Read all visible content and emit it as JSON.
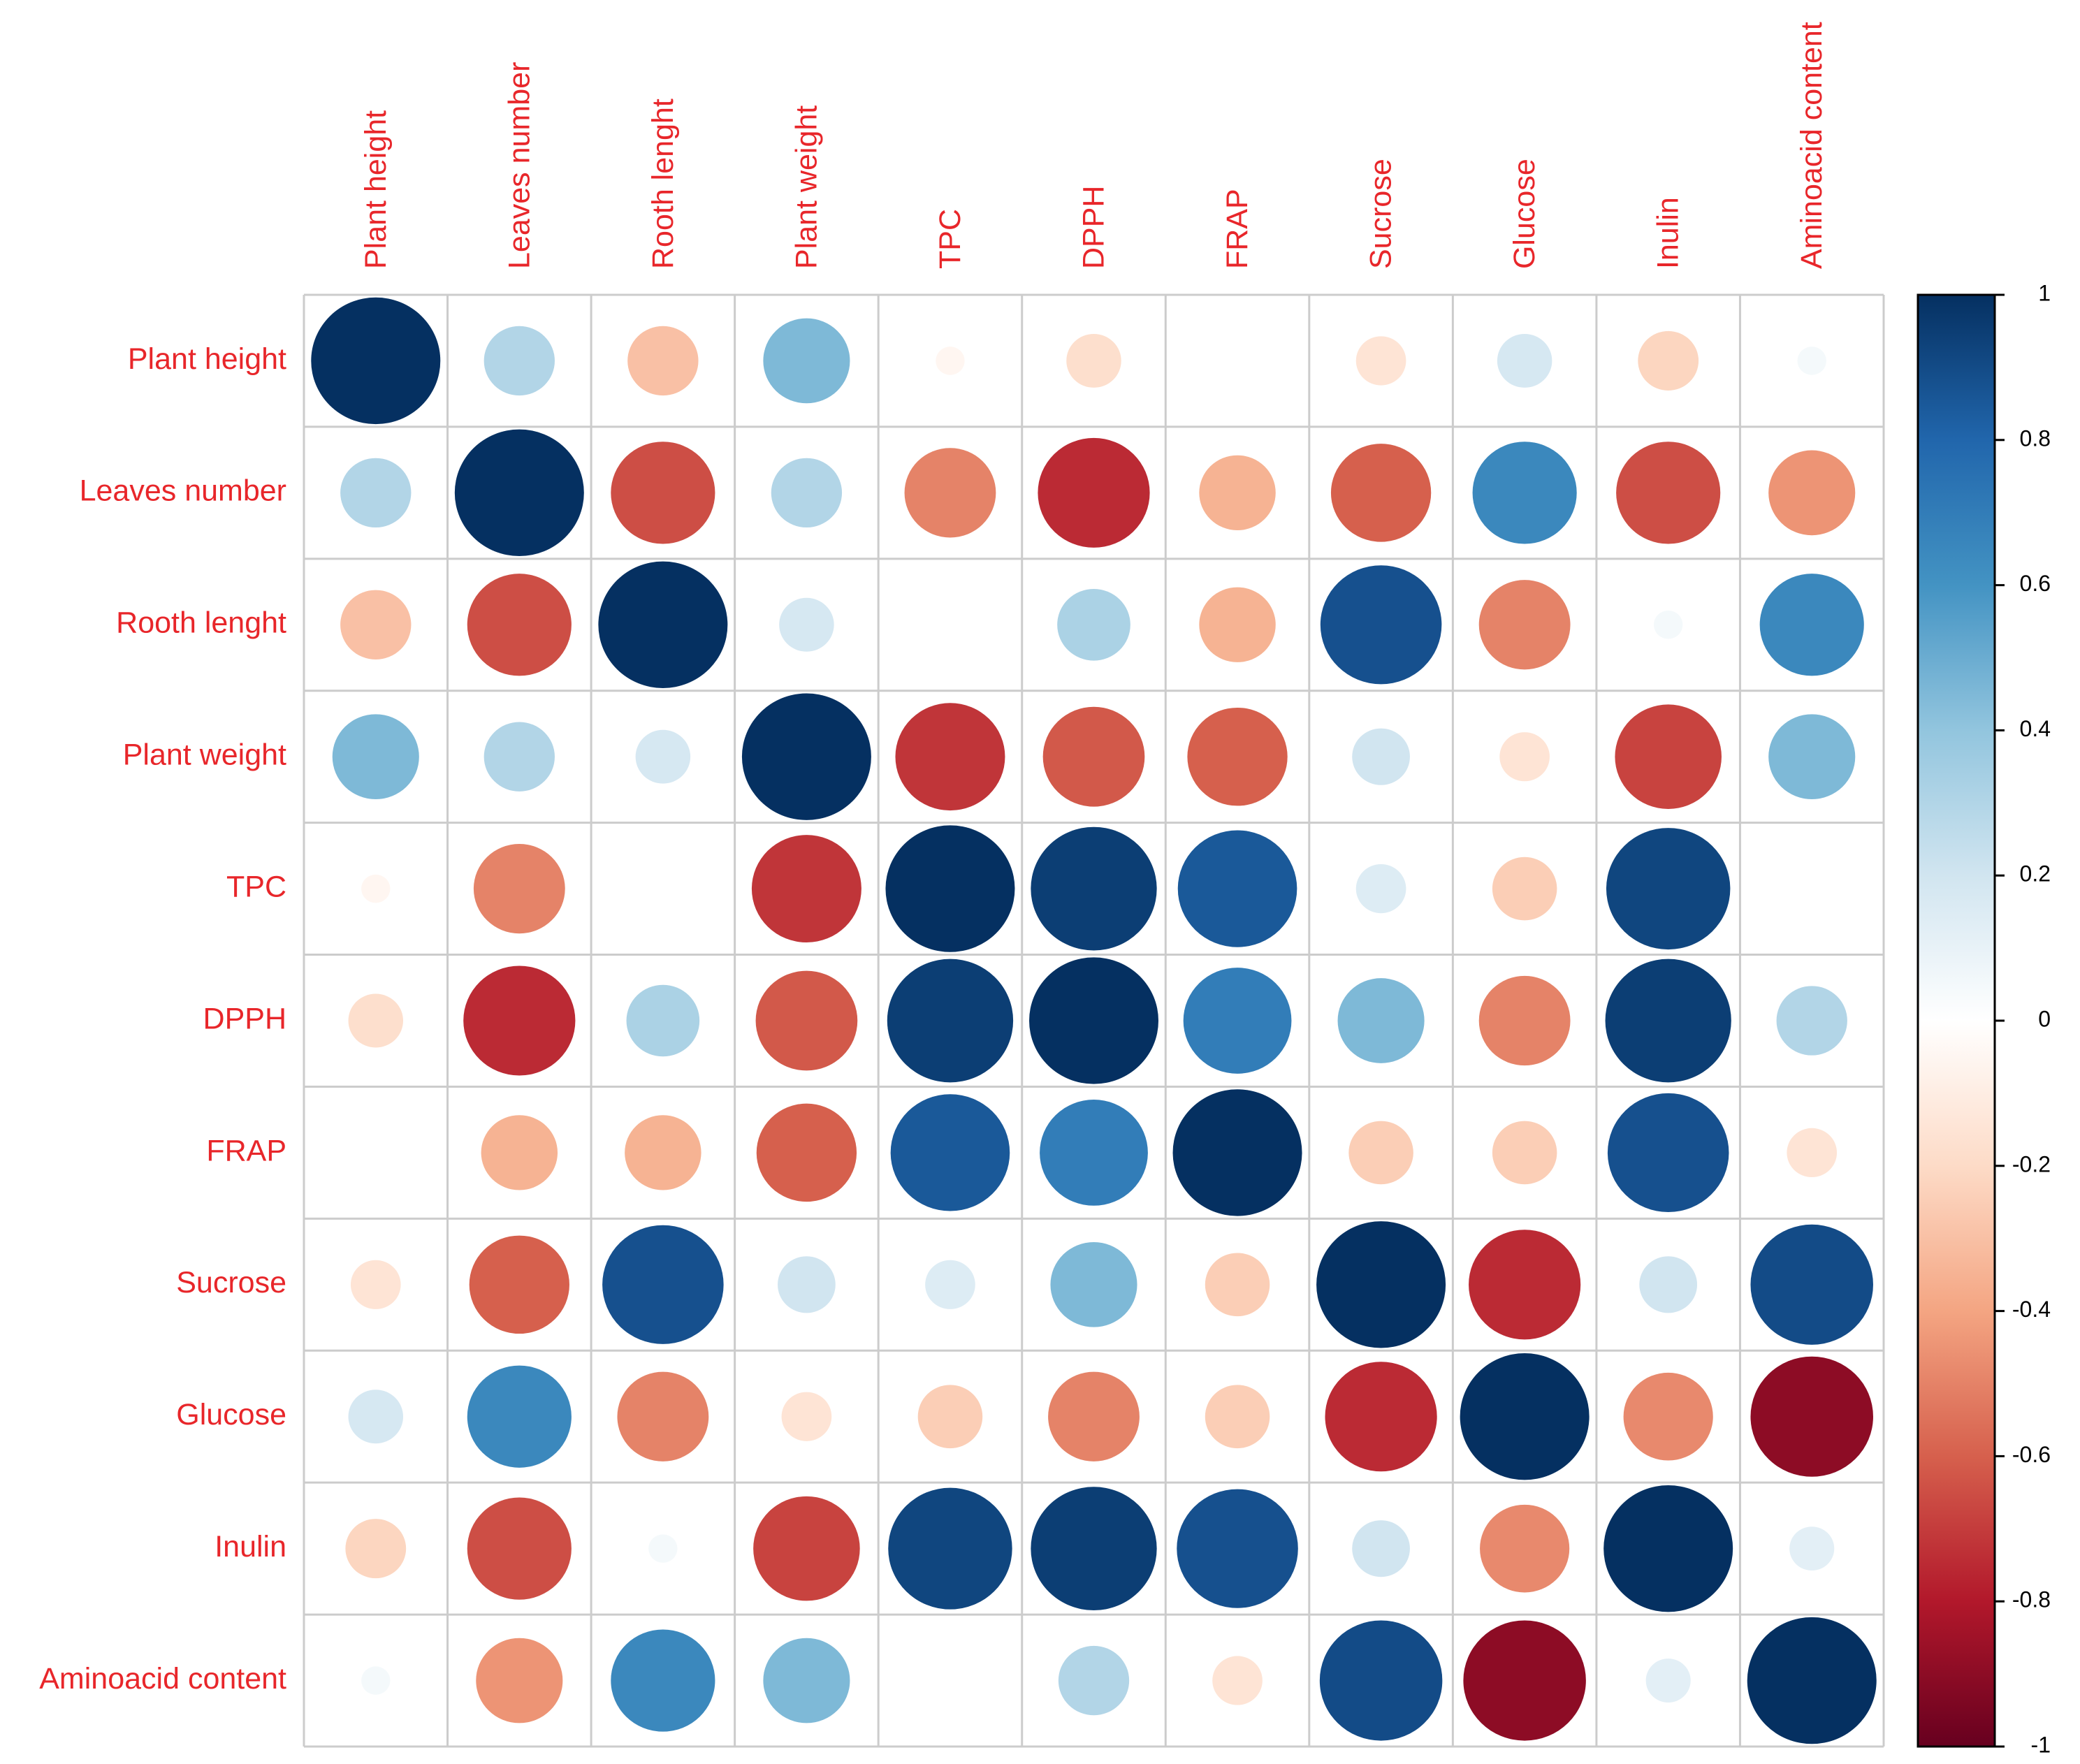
{
  "chart_data": {
    "type": "heatmap",
    "subtype": "correlation-circle-matrix",
    "variables": [
      "Plant height",
      "Leaves number",
      "Rooth lenght",
      "Plant weight",
      "TPC",
      "DPPH",
      "FRAP",
      "Sucrose",
      "Glucose",
      "Inulin",
      "Aminoacid content"
    ],
    "matrix": [
      [
        1.0,
        0.3,
        -0.3,
        0.45,
        -0.05,
        -0.18,
        0.0,
        -0.15,
        0.18,
        -0.22,
        0.05
      ],
      [
        0.3,
        1.0,
        -0.65,
        0.3,
        -0.5,
        -0.75,
        -0.35,
        -0.6,
        0.65,
        -0.65,
        -0.45
      ],
      [
        -0.3,
        -0.65,
        1.0,
        0.18,
        0.0,
        0.32,
        -0.35,
        0.88,
        -0.5,
        0.05,
        0.65
      ],
      [
        0.45,
        0.3,
        0.18,
        1.0,
        -0.72,
        -0.62,
        -0.6,
        0.2,
        -0.15,
        -0.68,
        0.45
      ],
      [
        -0.05,
        -0.5,
        0.0,
        -0.72,
        1.0,
        0.95,
        0.85,
        0.15,
        -0.25,
        0.92,
        0.0
      ],
      [
        -0.18,
        -0.75,
        0.32,
        -0.62,
        0.95,
        1.0,
        0.7,
        0.45,
        -0.5,
        0.95,
        0.3
      ],
      [
        0.0,
        -0.35,
        -0.35,
        -0.6,
        0.85,
        0.7,
        1.0,
        -0.25,
        -0.25,
        0.88,
        -0.15
      ],
      [
        -0.15,
        -0.6,
        0.88,
        0.2,
        0.15,
        0.45,
        -0.25,
        1.0,
        -0.75,
        0.2,
        0.9
      ],
      [
        0.18,
        0.65,
        -0.5,
        -0.15,
        -0.25,
        -0.5,
        -0.25,
        -0.75,
        1.0,
        -0.48,
        -0.9
      ],
      [
        -0.22,
        -0.65,
        0.05,
        -0.68,
        0.92,
        0.95,
        0.88,
        0.2,
        -0.48,
        1.0,
        0.12
      ],
      [
        0.05,
        -0.45,
        0.65,
        0.45,
        0.0,
        0.3,
        -0.15,
        0.9,
        -0.9,
        0.12,
        1.0
      ]
    ],
    "color_scale": {
      "ticks": [
        "1",
        "0.8",
        "0.6",
        "0.4",
        "0.2",
        "0",
        "-0.2",
        "-0.4",
        "-0.6",
        "-0.8",
        "-1"
      ],
      "range": [
        -1,
        1
      ],
      "palette": [
        "#67001F",
        "#B2182B",
        "#D6604D",
        "#F4A582",
        "#FDDBC7",
        "#FFFFFF",
        "#D1E5F0",
        "#92C5DE",
        "#4393C3",
        "#2166AC",
        "#053061"
      ]
    },
    "label_color": "#E8262A",
    "grid_color": "#CCCCCC"
  }
}
